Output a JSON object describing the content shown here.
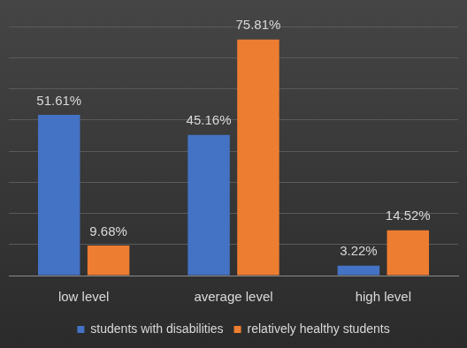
{
  "chart_data": {
    "type": "bar",
    "categories": [
      "low level",
      "average level",
      "high level"
    ],
    "series": [
      {
        "name": "students with disabilities",
        "color": "#4472c4",
        "values": [
          51.61,
          45.16,
          3.22
        ],
        "value_labels": [
          "51.61%",
          "45.16%",
          "3.22%"
        ]
      },
      {
        "name": "relatively healthy students",
        "color": "#ed7d31",
        "values": [
          9.68,
          75.81,
          14.52
        ],
        "value_labels": [
          "9.68%",
          "75.81%",
          "14.52%"
        ]
      }
    ],
    "ylim": [
      0,
      80
    ],
    "yticks": [
      0,
      10,
      20,
      30,
      40,
      50,
      60,
      70,
      80
    ],
    "grid": true,
    "legend": "bottom",
    "data_labels": true,
    "tick_labels": "x"
  }
}
